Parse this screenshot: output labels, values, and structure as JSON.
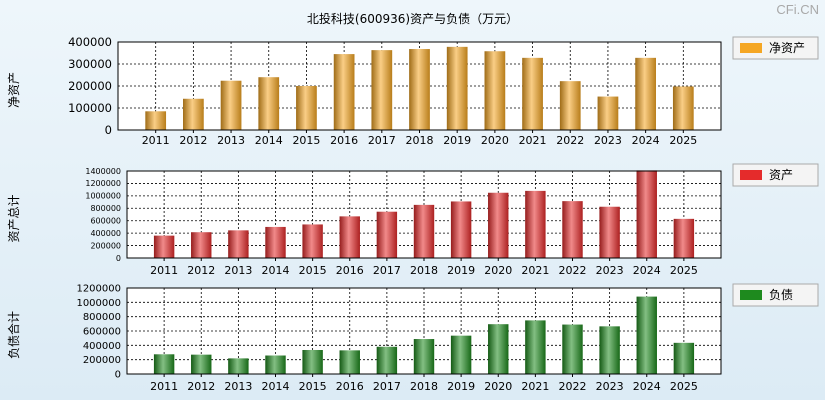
{
  "title": "北投科技(600936)资产与负债（万元）",
  "watermark": "CFi.CN",
  "chart_data": [
    {
      "type": "bar",
      "ylabel": "净资产",
      "legend": "净资产",
      "color": "#f5a623",
      "categories": [
        "2011",
        "2012",
        "2013",
        "2014",
        "2015",
        "2016",
        "2017",
        "2018",
        "2019",
        "2020",
        "2021",
        "2022",
        "2023",
        "2024",
        "2025"
      ],
      "values": [
        85000,
        142000,
        224000,
        240000,
        200000,
        345000,
        363000,
        368000,
        378000,
        358000,
        328000,
        222000,
        152000,
        328000,
        198000
      ],
      "ylim": [
        0,
        400000
      ],
      "yticks": [
        "0",
        "100000",
        "200000",
        "300000",
        "400000"
      ]
    },
    {
      "type": "bar",
      "ylabel": "资产总计",
      "legend": "资产",
      "color": "#e52b2b",
      "categories": [
        "2011",
        "2012",
        "2013",
        "2014",
        "2015",
        "2016",
        "2017",
        "2018",
        "2019",
        "2020",
        "2021",
        "2022",
        "2023",
        "2024",
        "2025"
      ],
      "values": [
        360000,
        415000,
        445000,
        500000,
        540000,
        670000,
        745000,
        855000,
        910000,
        1050000,
        1080000,
        915000,
        825000,
        1410000,
        630000
      ],
      "ylim": [
        0,
        1400000
      ],
      "yticks": [
        "0",
        "200000",
        "400000",
        "600000",
        "800000",
        "1000000",
        "1200000",
        "1400000"
      ]
    },
    {
      "type": "bar",
      "ylabel": "负债合计",
      "legend": "负债",
      "color": "#1e8a1e",
      "categories": [
        "2011",
        "2012",
        "2013",
        "2014",
        "2015",
        "2016",
        "2017",
        "2018",
        "2019",
        "2020",
        "2021",
        "2022",
        "2023",
        "2024",
        "2025"
      ],
      "values": [
        275000,
        270000,
        218000,
        258000,
        335000,
        330000,
        380000,
        488000,
        535000,
        695000,
        748000,
        690000,
        665000,
        1080000,
        435000
      ],
      "ylim": [
        0,
        1200000
      ],
      "yticks": [
        "0",
        "200000",
        "400000",
        "600000",
        "800000",
        "1000000",
        "1200000"
      ]
    }
  ]
}
